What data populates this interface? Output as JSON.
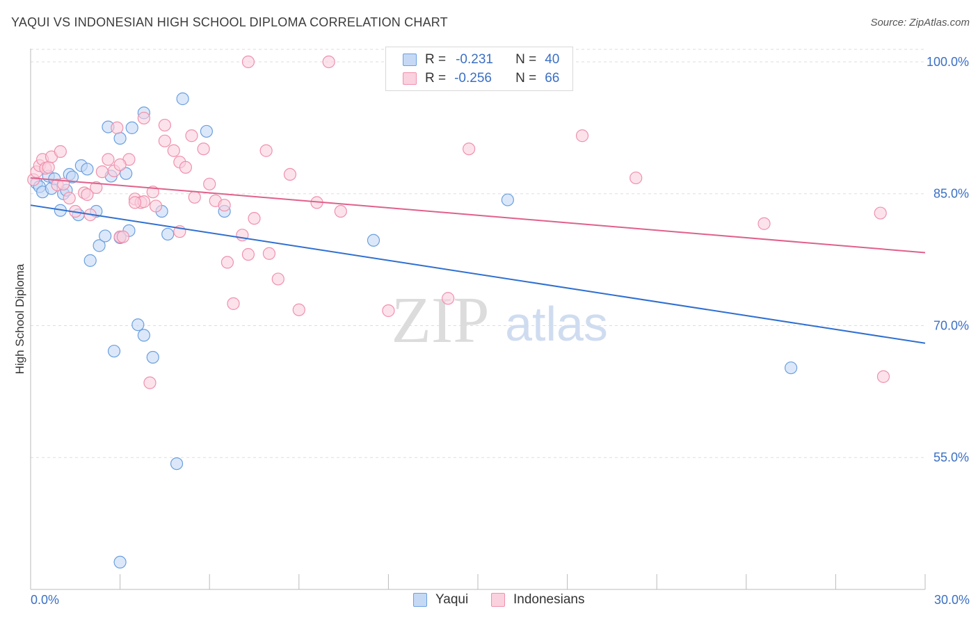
{
  "title": "YAQUI VS INDONESIAN HIGH SCHOOL DIPLOMA CORRELATION CHART",
  "source": "Source: ZipAtlas.com",
  "watermark": {
    "zip": "ZIP",
    "atlas": "atlas"
  },
  "legend_stats": [
    {
      "r_label": "R =",
      "r_value": "-0.231",
      "n_label": "N =",
      "n_value": "40"
    },
    {
      "r_label": "R =",
      "r_value": "-0.256",
      "n_label": "N =",
      "n_value": "66"
    }
  ],
  "chart_data": {
    "type": "scatter",
    "title": "YAQUI VS INDONESIAN HIGH SCHOOL DIPLOMA CORRELATION CHART",
    "xlabel": "",
    "ylabel": "High School Diploma",
    "xlim": [
      0,
      30
    ],
    "ylim": [
      40,
      101.5
    ],
    "x_tick_labels": [
      {
        "value": 0,
        "label": "0.0%"
      },
      {
        "value": 30,
        "label": "30.0%"
      }
    ],
    "y_tick_labels": [
      {
        "value": 100,
        "label": "100.0%"
      },
      {
        "value": 85,
        "label": "85.0%"
      },
      {
        "value": 70,
        "label": "70.0%"
      },
      {
        "value": 55,
        "label": "55.0%"
      }
    ],
    "x_minor_ticks": [
      0,
      3,
      6,
      9,
      12,
      15,
      18,
      21,
      24,
      27,
      30
    ],
    "grid": true,
    "legend": "bottom-center",
    "series": [
      {
        "name": "Yaqui",
        "color": "#6a9fe0",
        "fill": "#c5d9f5",
        "trend": {
          "x0": 0,
          "y0": 83.7,
          "x1": 30,
          "y1": 68.0,
          "color": "#2f6fd0"
        },
        "points": [
          [
            0.2,
            86.2
          ],
          [
            0.3,
            85.8
          ],
          [
            0.4,
            85.2
          ],
          [
            0.6,
            87.0
          ],
          [
            0.7,
            85.6
          ],
          [
            0.8,
            86.7
          ],
          [
            1.0,
            83.1
          ],
          [
            1.1,
            85.0
          ],
          [
            1.2,
            85.4
          ],
          [
            1.3,
            87.2
          ],
          [
            1.4,
            86.9
          ],
          [
            1.6,
            82.6
          ],
          [
            1.7,
            88.2
          ],
          [
            1.9,
            87.8
          ],
          [
            2.2,
            83.0
          ],
          [
            2.3,
            79.1
          ],
          [
            2.6,
            92.6
          ],
          [
            2.7,
            87.0
          ],
          [
            3.0,
            91.3
          ],
          [
            3.2,
            87.3
          ],
          [
            3.3,
            80.8
          ],
          [
            3.4,
            92.5
          ],
          [
            3.8,
            94.2
          ],
          [
            3.6,
            70.1
          ],
          [
            3.8,
            68.9
          ],
          [
            4.4,
            83.0
          ],
          [
            4.6,
            80.4
          ],
          [
            5.1,
            95.8
          ],
          [
            5.9,
            92.1
          ],
          [
            6.5,
            83.0
          ],
          [
            11.5,
            79.7
          ],
          [
            16.0,
            84.3
          ],
          [
            2.0,
            77.4
          ],
          [
            2.8,
            67.1
          ],
          [
            3.0,
            80.0
          ],
          [
            4.1,
            66.4
          ],
          [
            4.9,
            54.3
          ],
          [
            3.0,
            43.1
          ],
          [
            25.5,
            65.2
          ],
          [
            2.5,
            80.2
          ]
        ]
      },
      {
        "name": "Indonesians",
        "color": "#f090ac",
        "fill": "#fad1de",
        "trend": {
          "x0": 0,
          "y0": 86.8,
          "x1": 30,
          "y1": 78.3,
          "color": "#e0608a"
        },
        "points": [
          [
            0.1,
            86.6
          ],
          [
            0.2,
            87.5
          ],
          [
            0.3,
            88.2
          ],
          [
            0.4,
            88.9
          ],
          [
            0.5,
            87.9
          ],
          [
            0.6,
            88.0
          ],
          [
            0.7,
            89.2
          ],
          [
            0.9,
            86.0
          ],
          [
            1.0,
            89.8
          ],
          [
            1.1,
            86.1
          ],
          [
            1.3,
            84.5
          ],
          [
            1.5,
            83.0
          ],
          [
            1.8,
            85.1
          ],
          [
            1.9,
            84.9
          ],
          [
            2.0,
            82.6
          ],
          [
            2.2,
            85.7
          ],
          [
            2.4,
            87.5
          ],
          [
            2.6,
            88.9
          ],
          [
            2.8,
            87.6
          ],
          [
            2.9,
            92.5
          ],
          [
            3.0,
            80.1
          ],
          [
            3.1,
            80.1
          ],
          [
            3.3,
            88.9
          ],
          [
            3.5,
            84.4
          ],
          [
            3.7,
            84.0
          ],
          [
            3.8,
            93.6
          ],
          [
            4.1,
            85.2
          ],
          [
            4.2,
            83.6
          ],
          [
            4.5,
            92.8
          ],
          [
            4.8,
            89.9
          ],
          [
            5.0,
            88.6
          ],
          [
            5.2,
            88.0
          ],
          [
            5.5,
            84.6
          ],
          [
            5.8,
            90.1
          ],
          [
            6.0,
            86.1
          ],
          [
            6.2,
            84.2
          ],
          [
            6.5,
            83.7
          ],
          [
            6.6,
            77.2
          ],
          [
            6.8,
            72.5
          ],
          [
            7.1,
            80.3
          ],
          [
            7.3,
            78.1
          ],
          [
            7.5,
            82.2
          ],
          [
            7.9,
            89.9
          ],
          [
            8.0,
            78.2
          ],
          [
            8.3,
            75.3
          ],
          [
            8.7,
            87.2
          ],
          [
            9.0,
            71.8
          ],
          [
            9.6,
            84.0
          ],
          [
            10.4,
            83.0
          ],
          [
            12.0,
            71.7
          ],
          [
            14.0,
            73.1
          ],
          [
            14.7,
            90.1
          ],
          [
            7.3,
            100.0
          ],
          [
            10.0,
            100.0
          ],
          [
            4.5,
            91.0
          ],
          [
            5.0,
            80.7
          ],
          [
            3.8,
            84.1
          ],
          [
            4.0,
            63.5
          ],
          [
            5.4,
            91.6
          ],
          [
            3.5,
            84.0
          ],
          [
            3.0,
            88.3
          ],
          [
            18.5,
            91.6
          ],
          [
            20.3,
            86.8
          ],
          [
            24.6,
            81.6
          ],
          [
            28.5,
            82.8
          ],
          [
            28.6,
            64.2
          ]
        ]
      }
    ]
  }
}
